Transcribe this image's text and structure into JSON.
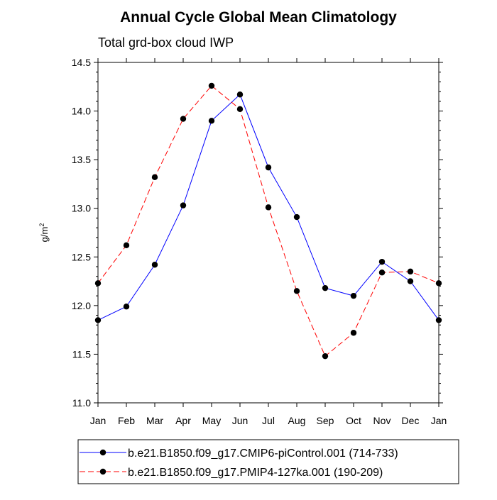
{
  "chart_data": {
    "type": "line",
    "title": "Annual Cycle Global Mean Climatology",
    "subtitle": "Total grd-box cloud IWP",
    "xlabel": "",
    "ylabel": "g/m",
    "ylabel_superscript": "2",
    "categories": [
      "Jan",
      "Feb",
      "Mar",
      "Apr",
      "May",
      "Jun",
      "Jul",
      "Aug",
      "Sep",
      "Oct",
      "Nov",
      "Dec",
      "Jan"
    ],
    "ylim": [
      11.0,
      14.5
    ],
    "yticks": [
      11.0,
      11.5,
      12.0,
      12.5,
      13.0,
      13.5,
      14.0,
      14.5
    ],
    "ytick_labels": [
      "11.0",
      "11.5",
      "12.0",
      "12.5",
      "13.0",
      "13.5",
      "14.0",
      "14.5"
    ],
    "grid": false,
    "legend_position": "bottom",
    "series": [
      {
        "name": "b.e21.B1850.f09_g17.CMIP6-piControl.001 (714-733)",
        "color": "#0000ff",
        "dash": "solid",
        "values": [
          11.85,
          11.99,
          12.42,
          13.03,
          13.9,
          14.17,
          13.42,
          12.91,
          12.18,
          12.1,
          12.45,
          12.25,
          11.85
        ]
      },
      {
        "name": "b.e21.B1850.f09_g17.PMIP4-127ka.001 (190-209)",
        "color": "#ff0000",
        "dash": "dashed",
        "values": [
          12.23,
          12.62,
          13.32,
          13.92,
          14.26,
          14.02,
          13.01,
          12.15,
          11.48,
          11.72,
          12.34,
          12.35,
          12.23
        ]
      }
    ]
  }
}
